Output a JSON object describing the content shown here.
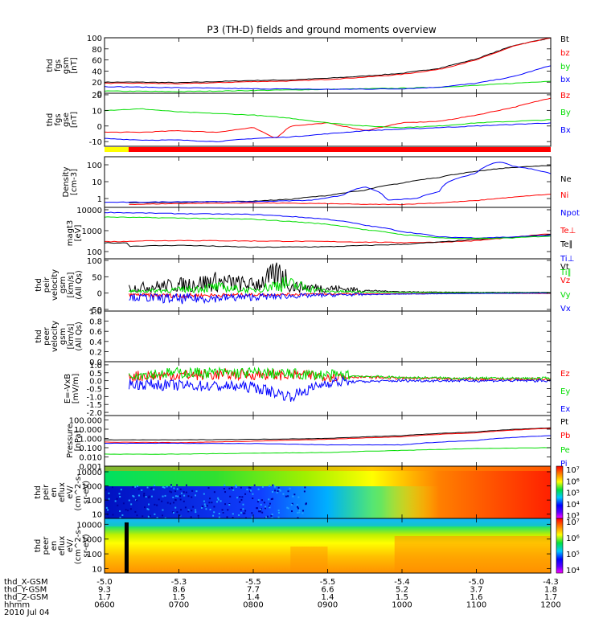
{
  "title": "P3 (TH-D) fields and ground moments overview",
  "status_bar": {
    "colors": [
      "#ffff00",
      "#ff0000"
    ],
    "switch_hhmm": "0630"
  },
  "chart_data": [
    {
      "type": "line",
      "panel": "fgs_gsm_mag",
      "ylabel": [
        "thd",
        "fgs",
        "gsm",
        "[nT]"
      ],
      "ylim": [
        0,
        100
      ],
      "yticks": [
        "0",
        "20",
        "40",
        "60",
        "80",
        "100"
      ],
      "ytick_values": [
        0,
        20,
        40,
        60,
        80,
        100
      ],
      "series": [
        {
          "name": "Bt",
          "color": "#000000",
          "x": [
            6,
            6.5,
            7,
            7.5,
            8,
            8.5,
            9,
            9.5,
            10,
            10.5,
            11,
            11.5,
            12
          ],
          "y": [
            20,
            20,
            19,
            21,
            23,
            24,
            27,
            31,
            36,
            45,
            62,
            86,
            100
          ]
        },
        {
          "name": "bz",
          "color": "#ff0000",
          "x": [
            6,
            6.5,
            7,
            7.5,
            8,
            8.5,
            9,
            9.5,
            10,
            10.5,
            11,
            11.5,
            12
          ],
          "y": [
            18,
            18,
            17,
            19,
            21,
            22,
            25,
            29,
            34,
            43,
            60,
            85,
            100
          ]
        },
        {
          "name": "by",
          "color": "#00dd00",
          "x": [
            6,
            7,
            8,
            9,
            10,
            10.5,
            11,
            11.5,
            12
          ],
          "y": [
            4,
            3,
            5,
            7,
            9,
            11,
            14,
            18,
            22
          ]
        },
        {
          "name": "bx",
          "color": "#0000ff",
          "x": [
            6,
            7,
            8,
            9,
            10,
            10.5,
            11,
            11.5,
            12
          ],
          "y": [
            12,
            10,
            8,
            7,
            8,
            11,
            18,
            30,
            50
          ]
        }
      ]
    },
    {
      "type": "line",
      "panel": "fgs_gse",
      "ylabel": [
        "thd",
        "fgs",
        "gse",
        "[nT]"
      ],
      "ylim": [
        -13,
        21
      ],
      "yticks": [
        "-10",
        "0",
        "10",
        "20"
      ],
      "ytick_values": [
        -10,
        0,
        10,
        20
      ],
      "series": [
        {
          "name": "Bz",
          "color": "#ff0000",
          "x": [
            6,
            6.5,
            7,
            7.5,
            8,
            8.3,
            8.5,
            9,
            9.5,
            10,
            10.5,
            11,
            11.5,
            12
          ],
          "y": [
            -4,
            -4,
            -3,
            -4,
            -1,
            -8,
            0,
            2,
            -3,
            2,
            3,
            7,
            12,
            18
          ]
        },
        {
          "name": "By",
          "color": "#00dd00",
          "x": [
            6,
            6.5,
            7,
            7.5,
            8,
            8.5,
            9,
            9.5,
            10,
            10.5,
            11,
            11.5,
            12
          ],
          "y": [
            10,
            11,
            9,
            8,
            7,
            5,
            2,
            0,
            -1,
            0,
            2,
            3,
            4
          ]
        },
        {
          "name": "Bx",
          "color": "#0000ff",
          "x": [
            6,
            6.5,
            7,
            7.5,
            8,
            8.5,
            9,
            9.5,
            10,
            10.5,
            11,
            11.5,
            12
          ],
          "y": [
            -8,
            -9,
            -9,
            -10,
            -8,
            -7,
            -5,
            -3,
            -2,
            -1,
            0,
            1,
            2
          ]
        }
      ]
    },
    {
      "type": "line",
      "panel": "density",
      "yscale": "log",
      "ylabel": [
        "Density",
        "[cm-3]"
      ],
      "ylim": [
        0.3,
        300
      ],
      "yticks": [
        "1",
        "10",
        "100"
      ],
      "ytick_values": [
        1,
        10,
        100
      ],
      "series": [
        {
          "name": "Ne",
          "color": "#000000",
          "x": [
            6.33,
            7,
            8,
            8.5,
            9,
            9.5,
            10,
            10.5,
            11,
            11.5,
            12
          ],
          "y": [
            0.55,
            0.6,
            0.7,
            0.9,
            1.5,
            3,
            8,
            18,
            40,
            70,
            90
          ]
        },
        {
          "name": "Ni",
          "color": "#ff0000",
          "x": [
            6.33,
            7,
            8,
            9,
            9.5,
            10,
            10.5,
            11,
            11.5,
            12
          ],
          "y": [
            0.45,
            0.5,
            0.55,
            0.5,
            0.45,
            0.45,
            0.55,
            0.75,
            1.2,
            1.8
          ]
        },
        {
          "name": "Npot",
          "color": "#0000ff",
          "x": [
            6,
            6.33,
            7,
            8,
            8.8,
            9.2,
            9.5,
            9.8,
            10.2,
            10.5,
            11,
            11.3,
            11.5,
            11.8,
            12
          ],
          "y": [
            0.6,
            0.6,
            0.65,
            0.65,
            0.8,
            1.5,
            5,
            0.8,
            1,
            2.5,
            30,
            150,
            80,
            50,
            30
          ]
        }
      ]
    },
    {
      "type": "line",
      "panel": "temperature",
      "yscale": "log",
      "ylabel": [
        "magt3",
        "[eV]"
      ],
      "ylim": [
        45,
        13000
      ],
      "yticks": [
        "100",
        "1000",
        "10000"
      ],
      "ytick_values": [
        100,
        1000,
        10000
      ],
      "series": [
        {
          "name": "Te⊥",
          "color": "#ff0000",
          "x": [
            6,
            6.3,
            6.33,
            7,
            8,
            9,
            10,
            10.5,
            11,
            11.5,
            12
          ],
          "y": [
            300,
            300,
            320,
            340,
            320,
            300,
            270,
            280,
            330,
            480,
            700
          ]
        },
        {
          "name": "Te∥",
          "color": "#000000",
          "x": [
            6,
            6.3,
            6.33,
            7,
            8,
            9,
            10,
            10.5,
            11,
            11.5,
            12
          ],
          "y": [
            260,
            260,
            180,
            200,
            160,
            170,
            220,
            280,
            380,
            480,
            650
          ]
        },
        {
          "name": "Ti⊥",
          "color": "#0000ff",
          "x": [
            6,
            7,
            8,
            9,
            9.5,
            10,
            10.5,
            11,
            11.5,
            12
          ],
          "y": [
            7500,
            6500,
            6000,
            3500,
            1800,
            900,
            500,
            450,
            500,
            600
          ]
        },
        {
          "name": "Ti∥",
          "color": "#00dd00",
          "x": [
            6,
            7,
            8,
            9,
            9.5,
            10,
            10.5,
            11,
            11.5,
            12
          ],
          "y": [
            4500,
            4000,
            3500,
            2000,
            1100,
            650,
            450,
            420,
            450,
            550
          ]
        }
      ]
    },
    {
      "type": "line",
      "panel": "peir_velocity",
      "ylabel": [
        "thd",
        "peir",
        "velocity",
        "gsm",
        "[km/s]",
        "(All Qs)"
      ],
      "ylim": [
        -55,
        105
      ],
      "yticks": [
        "-50",
        "0",
        "50",
        "100"
      ],
      "ytick_values": [
        -50,
        0,
        50,
        100
      ],
      "series": [
        {
          "name": "Vt",
          "color": "#000000",
          "x": [
            6.33,
            7,
            7.5,
            8,
            8.4,
            8.5,
            9,
            9.5,
            10,
            10.5,
            11,
            11.5,
            12
          ],
          "y": [
            15,
            25,
            35,
            25,
            60,
            20,
            15,
            8,
            4,
            3,
            2,
            2,
            2
          ]
        },
        {
          "name": "Vz",
          "color": "#ff0000",
          "x": [
            6.33,
            7,
            8,
            9,
            10,
            11,
            12
          ],
          "y": [
            -5,
            -8,
            -5,
            -3,
            -2,
            -1,
            -1
          ]
        },
        {
          "name": "Vy",
          "color": "#00dd00",
          "x": [
            6.33,
            7,
            7.5,
            8,
            8.4,
            9,
            10,
            11,
            12
          ],
          "y": [
            5,
            10,
            18,
            8,
            30,
            5,
            2,
            1,
            1
          ]
        },
        {
          "name": "Vx",
          "color": "#0000ff",
          "x": [
            6.33,
            7,
            8,
            9,
            10,
            11,
            12
          ],
          "y": [
            -12,
            -18,
            -12,
            -6,
            -3,
            -1,
            0
          ]
        }
      ]
    },
    {
      "type": "line",
      "panel": "peer_velocity",
      "ylabel": [
        "thd",
        "peer",
        "velocity",
        "gsm",
        "[km/s]",
        "(All Qs)"
      ],
      "ylim": [
        0,
        1
      ],
      "yticks": [
        "0.0",
        "0.2",
        "0.4",
        "0.6",
        "0.8",
        "1.0"
      ],
      "ytick_values": [
        0,
        0.2,
        0.4,
        0.6,
        0.8,
        1.0
      ],
      "series": [
        {
          "name": "Vt",
          "color": "#000000",
          "x": [],
          "y": []
        },
        {
          "name": "Vz",
          "color": "#ff0000",
          "x": [],
          "y": []
        },
        {
          "name": "Vy",
          "color": "#00dd00",
          "x": [],
          "y": []
        },
        {
          "name": "Vx",
          "color": "#0000ff",
          "x": [],
          "y": []
        }
      ]
    },
    {
      "type": "line",
      "panel": "electric_field",
      "ylabel": [
        "E=-VxB",
        "[mV/m]"
      ],
      "ylim": [
        -2.2,
        1.2
      ],
      "yticks": [
        "-2.0",
        "-1.5",
        "-1.0",
        "-0.5",
        "0.0",
        "0.5",
        "1.0"
      ],
      "ytick_values": [
        -2,
        -1.5,
        -1,
        -0.5,
        0,
        0.5,
        1
      ],
      "series": [
        {
          "name": "Ez",
          "color": "#ff0000",
          "x": [
            6.33,
            7,
            8,
            9,
            10,
            11,
            12
          ],
          "y": [
            0.3,
            0.35,
            0.4,
            0.3,
            0.15,
            0.1,
            0.1
          ]
        },
        {
          "name": "Ey",
          "color": "#00dd00",
          "x": [
            6.33,
            7,
            8,
            9,
            10,
            11,
            12
          ],
          "y": [
            0.4,
            0.5,
            0.5,
            0.35,
            0.2,
            0.15,
            0.15
          ]
        },
        {
          "name": "Ex",
          "color": "#0000ff",
          "x": [
            6.33,
            7,
            8,
            8.5,
            9,
            10,
            11,
            12
          ],
          "y": [
            -0.2,
            -0.3,
            -0.4,
            -1.0,
            -0.1,
            0,
            0,
            0
          ]
        }
      ]
    },
    {
      "type": "line",
      "panel": "pressure",
      "yscale": "log",
      "ylabel": [
        "Pressure",
        "[nPa]"
      ],
      "ylim": [
        0.001,
        300
      ],
      "yticks": [
        "0.001",
        "0.010",
        "0.100",
        "1.000",
        "10.000",
        "100.000"
      ],
      "ytick_values": [
        0.001,
        0.01,
        0.1,
        1,
        10,
        100
      ],
      "series": [
        {
          "name": "Pt",
          "color": "#000000",
          "x": [
            6,
            7,
            8,
            9,
            10,
            11,
            12
          ],
          "y": [
            0.7,
            0.7,
            0.8,
            1,
            2,
            5,
            14
          ]
        },
        {
          "name": "Pb",
          "color": "#ff0000",
          "x": [
            6,
            7,
            8,
            9,
            10,
            11,
            12
          ],
          "y": [
            0.4,
            0.35,
            0.5,
            0.8,
            1.5,
            4,
            12
          ]
        },
        {
          "name": "Pe",
          "color": "#00dd00",
          "x": [
            6,
            7,
            8,
            9,
            10,
            11,
            12
          ],
          "y": [
            0.02,
            0.02,
            0.025,
            0.03,
            0.05,
            0.08,
            0.1
          ]
        },
        {
          "name": "Pi",
          "color": "#0000ff",
          "x": [
            6,
            7,
            8,
            9,
            10,
            11,
            12
          ],
          "y": [
            0.3,
            0.3,
            0.28,
            0.2,
            0.2,
            0.6,
            2
          ]
        }
      ]
    },
    {
      "type": "heatmap",
      "panel": "peir_eflux",
      "yscale": "log",
      "ylabel": [
        "thd",
        "peir",
        "en",
        "eflux",
        "eV/",
        "(cm^2-s-",
        "sr-eV)"
      ],
      "ylim": [
        5,
        25000
      ],
      "yticks": [
        "10",
        "100",
        "1000",
        "10000"
      ],
      "ytick_values": [
        10,
        100,
        1000,
        10000
      ],
      "colorbar": {
        "ticks": [
          "10³",
          "10⁴",
          "10⁵",
          "10⁶",
          "10⁷"
        ]
      }
    },
    {
      "type": "heatmap",
      "panel": "peer_eflux",
      "yscale": "log",
      "ylabel": [
        "thd",
        "peer",
        "en",
        "eflux",
        "eV/",
        "(cm^2-s-",
        "sr-eV)"
      ],
      "ylim": [
        5,
        25000
      ],
      "yticks": [
        "10",
        "100",
        "1000",
        "10000"
      ],
      "ytick_values": [
        10,
        100,
        1000,
        10000
      ],
      "colorbar": {
        "ticks": [
          "10⁴",
          "10⁵",
          "10⁶",
          "10⁷"
        ]
      }
    }
  ],
  "time_axis": {
    "rows": [
      {
        "label": "thd_X-GSM",
        "values": [
          "-5.0",
          "-5.3",
          "-5.5",
          "-5.5",
          "-5.4",
          "-5.0",
          "-4.3"
        ]
      },
      {
        "label": "thd_Y-GSM",
        "values": [
          "9.3",
          "8.6",
          "7.7",
          "6.6",
          "5.2",
          "3.7",
          "1.8"
        ]
      },
      {
        "label": "thd_Z-GSM",
        "values": [
          "1.7",
          "1.5",
          "1.4",
          "1.4",
          "1.5",
          "1.6",
          "1.7"
        ]
      },
      {
        "label": "hhmm",
        "values": [
          "0600",
          "0700",
          "0800",
          "0900",
          "1000",
          "1100",
          "1200"
        ]
      }
    ],
    "date": "2010 Jul 04"
  }
}
